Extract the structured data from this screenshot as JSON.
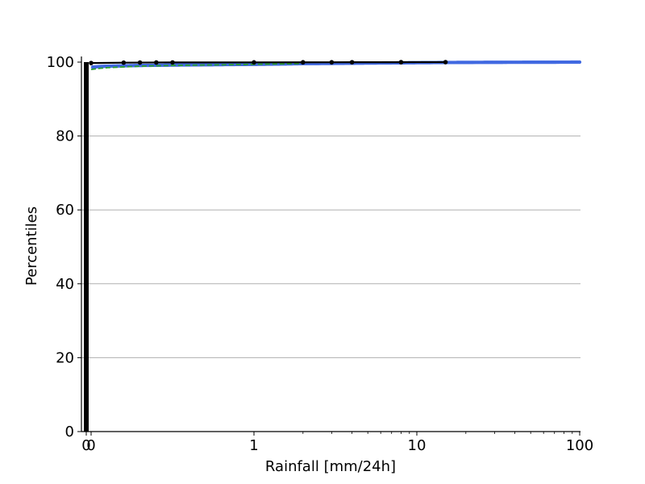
{
  "chart_data": {
    "type": "line",
    "title": "",
    "xlabel": "Rainfall [mm/24h]",
    "ylabel": "Percentiles",
    "xscale": "symlog",
    "xlim": [
      -0.03,
      100
    ],
    "ylim": [
      0,
      100
    ],
    "grid": "y",
    "legend": "none",
    "x_ticks": [
      {
        "value": -0.03,
        "label": "0"
      },
      {
        "value": 0,
        "label": "0"
      },
      {
        "value": 1,
        "label": "1"
      },
      {
        "value": 10,
        "label": "10"
      },
      {
        "value": 100,
        "label": "100"
      }
    ],
    "y_ticks": [
      {
        "value": 0,
        "label": "0"
      },
      {
        "value": 20,
        "label": "20"
      },
      {
        "value": 40,
        "label": "40"
      },
      {
        "value": 60,
        "label": "60"
      },
      {
        "value": 80,
        "label": "80"
      },
      {
        "value": 100,
        "label": "100"
      }
    ],
    "series": [
      {
        "style": "dense-dots",
        "color": "#4169e1",
        "x": [
          0,
          0.05,
          0.1,
          0.2,
          0.3,
          0.5,
          1,
          2,
          5,
          10,
          15,
          20,
          30,
          50,
          70,
          100
        ],
        "y": [
          98.6,
          98.8,
          98.9,
          99.0,
          99.1,
          99.2,
          99.4,
          99.6,
          99.75,
          99.85,
          99.9,
          99.92,
          99.95,
          99.97,
          99.98,
          100
        ]
      },
      {
        "style": "line",
        "color": "#2ca02c",
        "x": [
          0,
          0.05,
          0.1,
          0.2,
          0.3,
          0.5,
          1,
          2
        ],
        "y": [
          98.0,
          98.3,
          98.5,
          98.7,
          98.9,
          99.1,
          99.4,
          99.6
        ]
      },
      {
        "style": "line-markers",
        "color": "#000000",
        "x": [
          0,
          0.2,
          0.3,
          0.4,
          0.5,
          1,
          2,
          3,
          4,
          8,
          15
        ],
        "y": [
          99.75,
          99.85,
          99.88,
          99.9,
          99.92,
          99.93,
          99.95,
          99.96,
          99.97,
          99.98,
          99.99
        ]
      }
    ],
    "zero_band": {
      "color": "#000000",
      "y_range": [
        0,
        100
      ]
    }
  }
}
